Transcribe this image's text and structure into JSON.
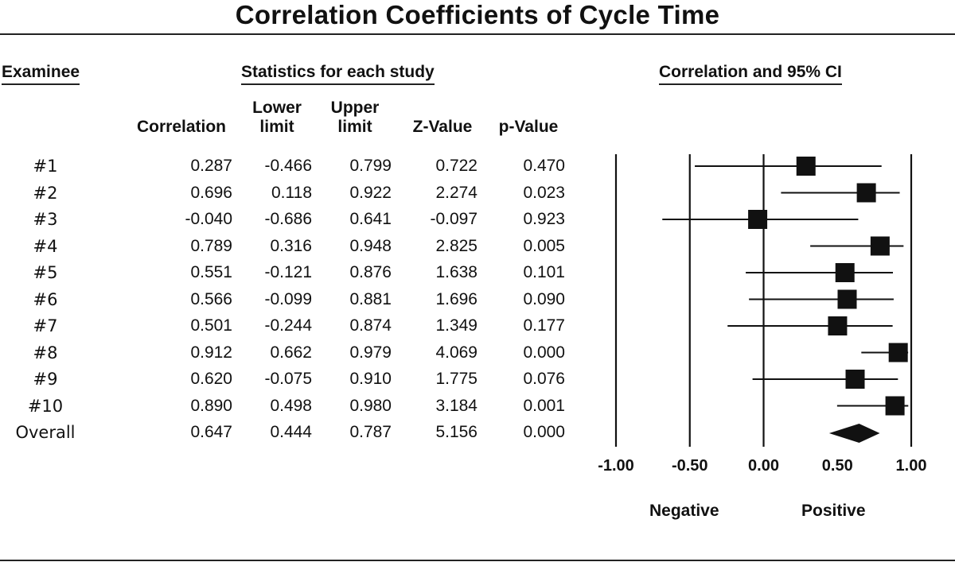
{
  "title": "Correlation Coefficients of Cycle Time",
  "headers": {
    "examinee": "Examinee",
    "stats": "Statistics for each study",
    "plot": "Correlation and 95% CI",
    "columns": [
      {
        "line1": "",
        "line2": "Correlation"
      },
      {
        "line1": "Lower",
        "line2": "limit"
      },
      {
        "line1": "Upper",
        "line2": "limit"
      },
      {
        "line1": "",
        "line2": "Z-Value"
      },
      {
        "line1": "",
        "line2": "p-Value"
      }
    ]
  },
  "rows": [
    {
      "label": "#1",
      "correlation": "0.287",
      "lower": "-0.466",
      "upper": "0.799",
      "z": "0.722",
      "p": "0.470"
    },
    {
      "label": "#2",
      "correlation": "0.696",
      "lower": "0.118",
      "upper": "0.922",
      "z": "2.274",
      "p": "0.023"
    },
    {
      "label": "#3",
      "correlation": "-0.040",
      "lower": "-0.686",
      "upper": "0.641",
      "z": "-0.097",
      "p": "0.923"
    },
    {
      "label": "#4",
      "correlation": "0.789",
      "lower": "0.316",
      "upper": "0.948",
      "z": "2.825",
      "p": "0.005"
    },
    {
      "label": "#5",
      "correlation": "0.551",
      "lower": "-0.121",
      "upper": "0.876",
      "z": "1.638",
      "p": "0.101"
    },
    {
      "label": "#6",
      "correlation": "0.566",
      "lower": "-0.099",
      "upper": "0.881",
      "z": "1.696",
      "p": "0.090"
    },
    {
      "label": "#7",
      "correlation": "0.501",
      "lower": "-0.244",
      "upper": "0.874",
      "z": "1.349",
      "p": "0.177"
    },
    {
      "label": "#8",
      "correlation": "0.912",
      "lower": "0.662",
      "upper": "0.979",
      "z": "4.069",
      "p": "0.000"
    },
    {
      "label": "#9",
      "correlation": "0.620",
      "lower": "-0.075",
      "upper": "0.910",
      "z": "1.775",
      "p": "0.076"
    },
    {
      "label": "#10",
      "correlation": "0.890",
      "lower": "0.498",
      "upper": "0.980",
      "z": "3.184",
      "p": "0.001"
    }
  ],
  "overall": {
    "label": "Overall",
    "correlation": "0.647",
    "lower": "0.444",
    "upper": "0.787",
    "z": "5.156",
    "p": "0.000"
  },
  "chart_data": {
    "type": "forest",
    "title": "Correlation and 95% CI",
    "x_range": [
      -1.0,
      1.0
    ],
    "x_ticks": [
      "-1.00",
      "-0.50",
      "0.00",
      "0.50",
      "1.00"
    ],
    "tick_values": [
      -1.0,
      -0.5,
      0.0,
      0.5,
      1.0
    ],
    "direction_labels": {
      "negative": "Negative",
      "positive": "Positive"
    },
    "studies": [
      {
        "name": "#1",
        "estimate": 0.287,
        "lower": -0.466,
        "upper": 0.799
      },
      {
        "name": "#2",
        "estimate": 0.696,
        "lower": 0.118,
        "upper": 0.922
      },
      {
        "name": "#3",
        "estimate": -0.04,
        "lower": -0.686,
        "upper": 0.641
      },
      {
        "name": "#4",
        "estimate": 0.789,
        "lower": 0.316,
        "upper": 0.948
      },
      {
        "name": "#5",
        "estimate": 0.551,
        "lower": -0.121,
        "upper": 0.876
      },
      {
        "name": "#6",
        "estimate": 0.566,
        "lower": -0.099,
        "upper": 0.881
      },
      {
        "name": "#7",
        "estimate": 0.501,
        "lower": -0.244,
        "upper": 0.874
      },
      {
        "name": "#8",
        "estimate": 0.912,
        "lower": 0.662,
        "upper": 0.979
      },
      {
        "name": "#9",
        "estimate": 0.62,
        "lower": -0.075,
        "upper": 0.91
      },
      {
        "name": "#10",
        "estimate": 0.89,
        "lower": 0.498,
        "upper": 0.98
      }
    ],
    "overall": {
      "name": "Overall",
      "estimate": 0.647,
      "lower": 0.444,
      "upper": 0.787
    }
  }
}
